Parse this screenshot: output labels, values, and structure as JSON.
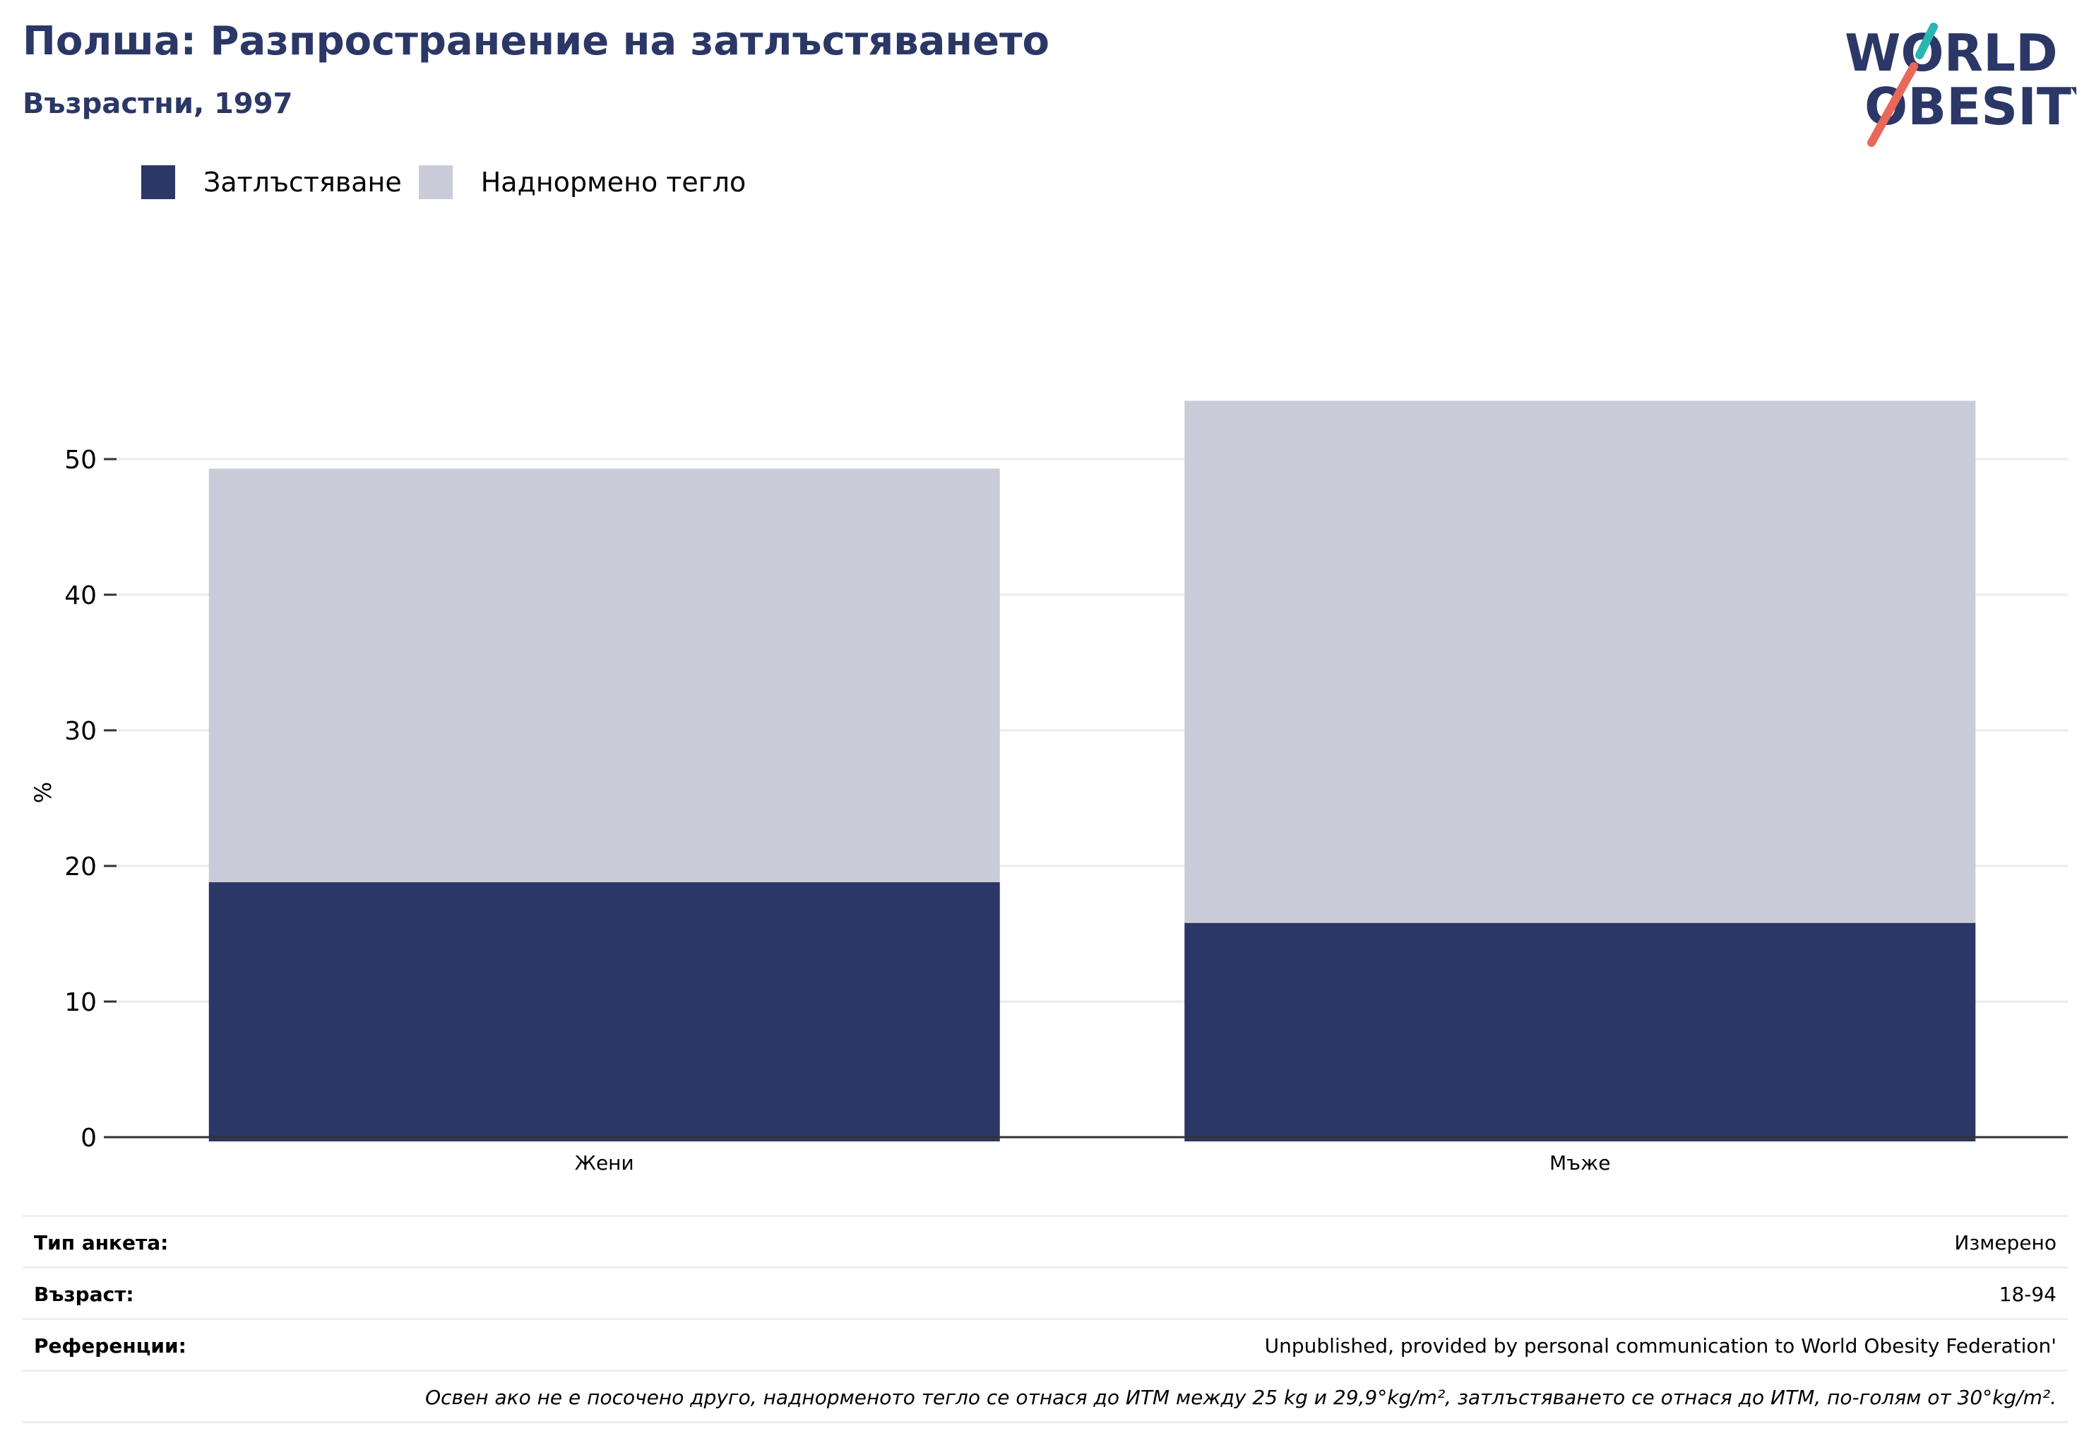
{
  "title": "Полша: Разпространение на затлъстяването",
  "subtitle": "Възрастни, 1997",
  "logo": {
    "line1": "WORLD",
    "line2": "OBESITY",
    "accent_teal": "#2bb5b0",
    "accent_coral": "#e8685a",
    "text_color": "#2b3766"
  },
  "chart_data": {
    "type": "bar",
    "stacked": true,
    "categories": [
      "Жени",
      "Мъже"
    ],
    "series": [
      {
        "name": "Затлъстяване",
        "values": [
          18.8,
          15.8
        ],
        "color": "#2b3766"
      },
      {
        "name": "Наднормено тегло",
        "values": [
          30.5,
          38.5
        ],
        "color": "#cacdd9"
      }
    ],
    "ylabel": "%",
    "ylim": [
      0,
      55
    ],
    "yticks": [
      0,
      10,
      20,
      30,
      40,
      50
    ],
    "grid": true,
    "legend_position": "top-left"
  },
  "info": [
    {
      "key": "Тип анкета:",
      "value": "Измерено"
    },
    {
      "key": "Възраст:",
      "value": "18-94"
    },
    {
      "key": "Референции:",
      "value": "Unpublished, provided by personal communication to World Obesity Federation'"
    }
  ],
  "note": "Освен ако не е посочено друго, наднорменото тегло се отнася до ИТМ между 25 kg и 29,9°kg/m², затлъстяването се отнася до ИТМ, по-голям от 30°kg/m²."
}
